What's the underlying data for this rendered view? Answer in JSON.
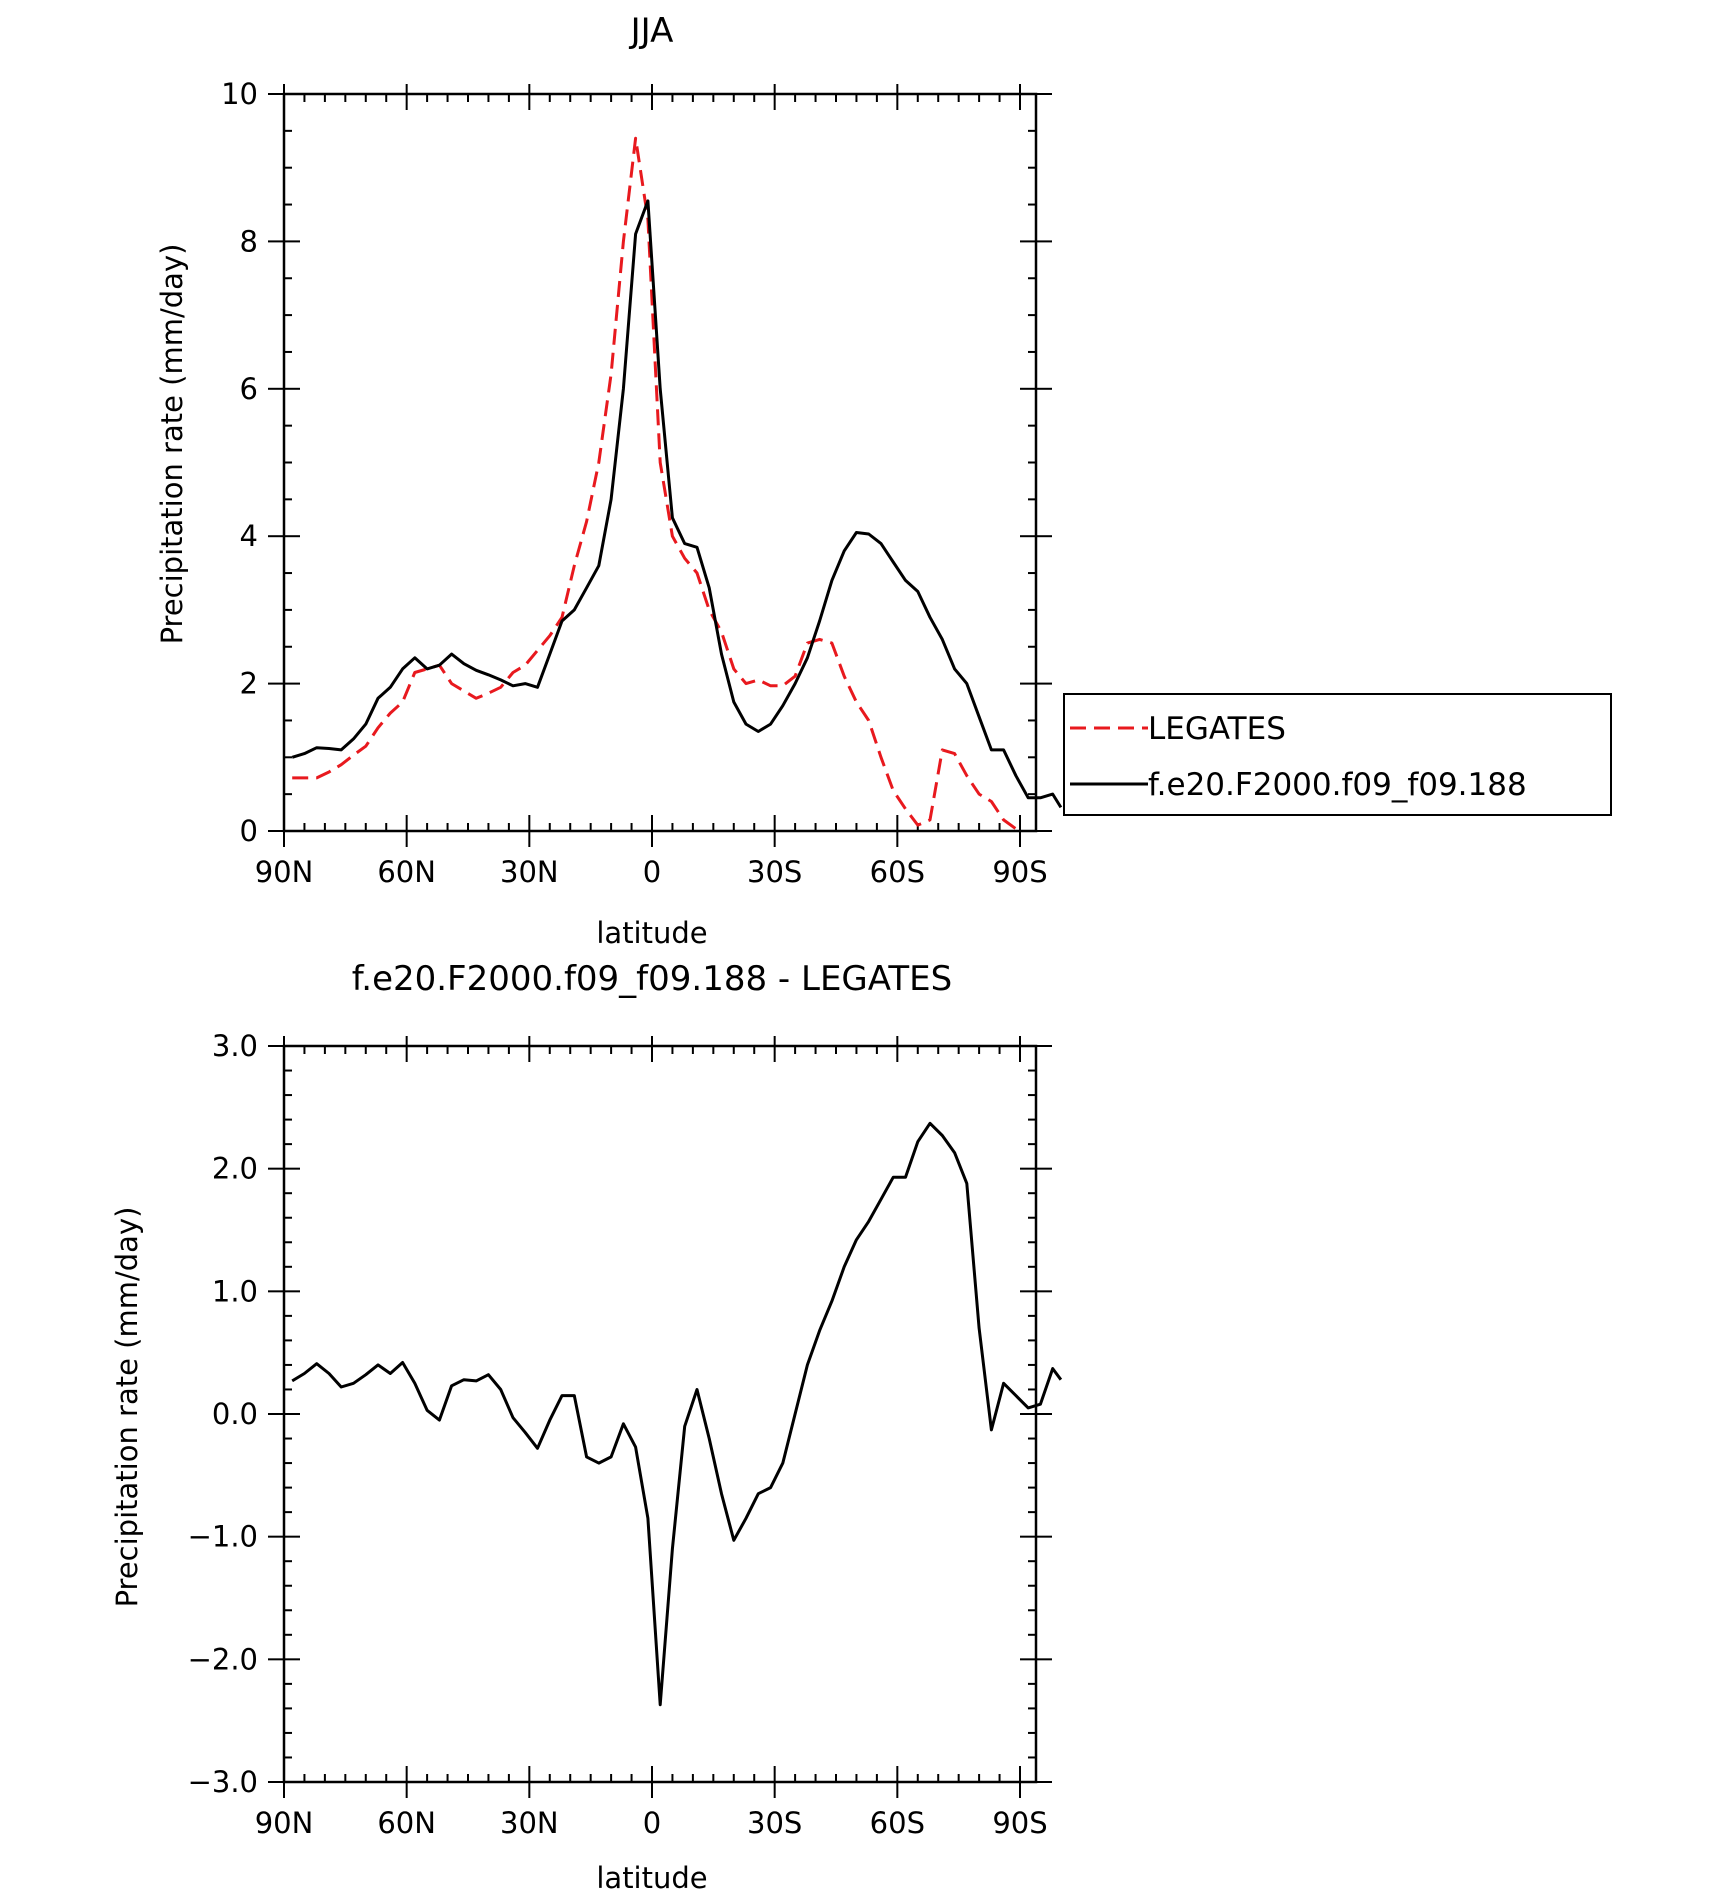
{
  "chart_data": [
    {
      "type": "line",
      "title": "JJA",
      "xlabel": "latitude",
      "ylabel": "Precipitation rate (mm/day)",
      "xlim": [
        90,
        -90
      ],
      "ylim": [
        0,
        10
      ],
      "x_ticks": [
        {
          "value": 90,
          "label": "90N"
        },
        {
          "value": 60,
          "label": "60N"
        },
        {
          "value": 30,
          "label": "30N"
        },
        {
          "value": 0,
          "label": "0"
        },
        {
          "value": -30,
          "label": "30S"
        },
        {
          "value": -60,
          "label": "60S"
        },
        {
          "value": -90,
          "label": "90S"
        }
      ],
      "y_ticks": [
        {
          "value": 0,
          "label": "0"
        },
        {
          "value": 2,
          "label": "2"
        },
        {
          "value": 4,
          "label": "4"
        },
        {
          "value": 6,
          "label": "6"
        },
        {
          "value": 8,
          "label": "8"
        },
        {
          "value": 10,
          "label": "10"
        }
      ],
      "legend_position": "right",
      "series": [
        {
          "name": "LEGATES",
          "color": "#e8191e",
          "dash": "dashed",
          "points": [
            [
              88,
              0.72
            ],
            [
              85,
              0.72
            ],
            [
              82,
              0.72
            ],
            [
              79,
              0.8
            ],
            [
              76,
              0.9
            ],
            [
              73,
              1.03
            ],
            [
              70,
              1.15
            ],
            [
              67,
              1.4
            ],
            [
              64,
              1.6
            ],
            [
              61,
              1.75
            ],
            [
              58,
              2.15
            ],
            [
              55,
              2.2
            ],
            [
              52,
              2.25
            ],
            [
              49,
              2.0
            ],
            [
              46,
              1.9
            ],
            [
              43,
              1.8
            ],
            [
              40,
              1.87
            ],
            [
              37,
              1.95
            ],
            [
              34,
              2.15
            ],
            [
              31,
              2.25
            ],
            [
              28,
              2.45
            ],
            [
              25,
              2.65
            ],
            [
              22,
              2.9
            ],
            [
              19,
              3.6
            ],
            [
              16,
              4.2
            ],
            [
              13,
              5.0
            ],
            [
              10,
              6.2
            ],
            [
              7,
              8.0
            ],
            [
              4,
              9.4
            ],
            [
              1,
              8.3
            ],
            [
              -2,
              5.0
            ],
            [
              -5,
              4.0
            ],
            [
              -8,
              3.7
            ],
            [
              -11,
              3.5
            ],
            [
              -14,
              3.0
            ],
            [
              -17,
              2.7
            ],
            [
              -20,
              2.2
            ],
            [
              -23,
              2.0
            ],
            [
              -26,
              2.05
            ],
            [
              -29,
              1.97
            ],
            [
              -32,
              1.97
            ],
            [
              -35,
              2.1
            ],
            [
              -38,
              2.55
            ],
            [
              -41,
              2.6
            ],
            [
              -44,
              2.55
            ],
            [
              -47,
              2.1
            ],
            [
              -50,
              1.75
            ],
            [
              -53,
              1.5
            ],
            [
              -56,
              1.0
            ],
            [
              -59,
              0.55
            ],
            [
              -62,
              0.3
            ],
            [
              -65,
              0.08
            ],
            [
              -68,
              0.15
            ],
            [
              -71,
              1.1
            ],
            [
              -74,
              1.05
            ],
            [
              -77,
              0.75
            ],
            [
              -80,
              0.5
            ],
            [
              -83,
              0.4
            ],
            [
              -86,
              0.15
            ],
            [
              -89,
              0.03
            ]
          ]
        },
        {
          "name": "f.e20.F2000.f09_f09.188",
          "color": "#000000",
          "dash": "solid",
          "points": [
            [
              88,
              1.0
            ],
            [
              85,
              1.05
            ],
            [
              82,
              1.13
            ],
            [
              79,
              1.12
            ],
            [
              76,
              1.1
            ],
            [
              73,
              1.25
            ],
            [
              70,
              1.45
            ],
            [
              67,
              1.8
            ],
            [
              64,
              1.95
            ],
            [
              61,
              2.2
            ],
            [
              58,
              2.35
            ],
            [
              55,
              2.2
            ],
            [
              52,
              2.25
            ],
            [
              49,
              2.4
            ],
            [
              46,
              2.27
            ],
            [
              43,
              2.18
            ],
            [
              40,
              2.12
            ],
            [
              37,
              2.05
            ],
            [
              34,
              1.97
            ],
            [
              31,
              2.0
            ],
            [
              28,
              1.95
            ],
            [
              25,
              2.4
            ],
            [
              22,
              2.85
            ],
            [
              19,
              3.0
            ],
            [
              16,
              3.3
            ],
            [
              13,
              3.6
            ],
            [
              10,
              4.5
            ],
            [
              7,
              6.0
            ],
            [
              4,
              8.1
            ],
            [
              1,
              8.55
            ],
            [
              -2,
              6.0
            ],
            [
              -5,
              4.25
            ],
            [
              -8,
              3.9
            ],
            [
              -11,
              3.85
            ],
            [
              -14,
              3.3
            ],
            [
              -17,
              2.4
            ],
            [
              -20,
              1.75
            ],
            [
              -23,
              1.45
            ],
            [
              -26,
              1.35
            ],
            [
              -29,
              1.45
            ],
            [
              -32,
              1.7
            ],
            [
              -35,
              2.0
            ],
            [
              -38,
              2.35
            ],
            [
              -41,
              2.85
            ],
            [
              -44,
              3.4
            ],
            [
              -47,
              3.8
            ],
            [
              -50,
              4.05
            ],
            [
              -53,
              4.03
            ],
            [
              -56,
              3.9
            ],
            [
              -59,
              3.65
            ],
            [
              -62,
              3.4
            ],
            [
              -65,
              3.25
            ],
            [
              -68,
              2.9
            ],
            [
              -71,
              2.6
            ],
            [
              -74,
              2.2
            ],
            [
              -77,
              2.0
            ],
            [
              -80,
              1.55
            ],
            [
              -83,
              1.1
            ],
            [
              -86,
              1.1
            ],
            [
              -89,
              0.75
            ],
            [
              -92,
              0.45
            ],
            [
              -95,
              0.45
            ],
            [
              -98,
              0.5
            ],
            [
              -100,
              0.32
            ]
          ]
        }
      ]
    },
    {
      "type": "line",
      "title": "f.e20.F2000.f09_f09.188 - LEGATES",
      "xlabel": "latitude",
      "ylabel": "Precipitation rate (mm/day)",
      "xlim": [
        90,
        -90
      ],
      "ylim": [
        -3,
        3
      ],
      "x_ticks": [
        {
          "value": 90,
          "label": "90N"
        },
        {
          "value": 60,
          "label": "60N"
        },
        {
          "value": 30,
          "label": "30N"
        },
        {
          "value": 0,
          "label": "0"
        },
        {
          "value": -30,
          "label": "30S"
        },
        {
          "value": -60,
          "label": "60S"
        },
        {
          "value": -90,
          "label": "90S"
        }
      ],
      "y_ticks": [
        {
          "value": -3,
          "label": "−3.0"
        },
        {
          "value": -2,
          "label": "−2.0"
        },
        {
          "value": -1,
          "label": "−1.0"
        },
        {
          "value": 0,
          "label": "0.0"
        },
        {
          "value": 1,
          "label": "1.0"
        },
        {
          "value": 2,
          "label": "2.0"
        },
        {
          "value": 3,
          "label": "3.0"
        }
      ],
      "series": [
        {
          "color": "#000000",
          "dash": "solid",
          "points": [
            [
              88,
              0.27
            ],
            [
              85,
              0.33
            ],
            [
              82,
              0.41
            ],
            [
              79,
              0.33
            ],
            [
              76,
              0.22
            ],
            [
              73,
              0.25
            ],
            [
              70,
              0.32
            ],
            [
              67,
              0.4
            ],
            [
              64,
              0.33
            ],
            [
              61,
              0.42
            ],
            [
              58,
              0.25
            ],
            [
              55,
              0.03
            ],
            [
              52,
              -0.05
            ],
            [
              49,
              0.23
            ],
            [
              46,
              0.28
            ],
            [
              43,
              0.27
            ],
            [
              40,
              0.32
            ],
            [
              37,
              0.2
            ],
            [
              34,
              -0.03
            ],
            [
              31,
              -0.15
            ],
            [
              28,
              -0.28
            ],
            [
              25,
              -0.05
            ],
            [
              22,
              0.15
            ],
            [
              19,
              0.15
            ],
            [
              16,
              -0.35
            ],
            [
              13,
              -0.4
            ],
            [
              10,
              -0.35
            ],
            [
              7,
              -0.08
            ],
            [
              4,
              -0.27
            ],
            [
              1,
              -0.85
            ],
            [
              -2,
              -2.37
            ],
            [
              -5,
              -1.1
            ],
            [
              -8,
              -0.1
            ],
            [
              -11,
              0.2
            ],
            [
              -14,
              -0.2
            ],
            [
              -17,
              -0.65
            ],
            [
              -20,
              -1.03
            ],
            [
              -23,
              -0.85
            ],
            [
              -26,
              -0.65
            ],
            [
              -29,
              -0.6
            ],
            [
              -32,
              -0.4
            ],
            [
              -35,
              0.0
            ],
            [
              -38,
              0.4
            ],
            [
              -41,
              0.68
            ],
            [
              -44,
              0.92
            ],
            [
              -47,
              1.2
            ],
            [
              -50,
              1.42
            ],
            [
              -53,
              1.57
            ],
            [
              -56,
              1.75
            ],
            [
              -59,
              1.93
            ],
            [
              -62,
              1.93
            ],
            [
              -65,
              2.22
            ],
            [
              -68,
              2.37
            ],
            [
              -71,
              2.27
            ],
            [
              -74,
              2.13
            ],
            [
              -77,
              1.88
            ],
            [
              -80,
              0.7
            ],
            [
              -83,
              -0.13
            ],
            [
              -86,
              0.25
            ],
            [
              -89,
              0.15
            ],
            [
              -92,
              0.05
            ],
            [
              -95,
              0.08
            ],
            [
              -98,
              0.37
            ],
            [
              -100,
              0.28
            ]
          ]
        }
      ]
    }
  ]
}
